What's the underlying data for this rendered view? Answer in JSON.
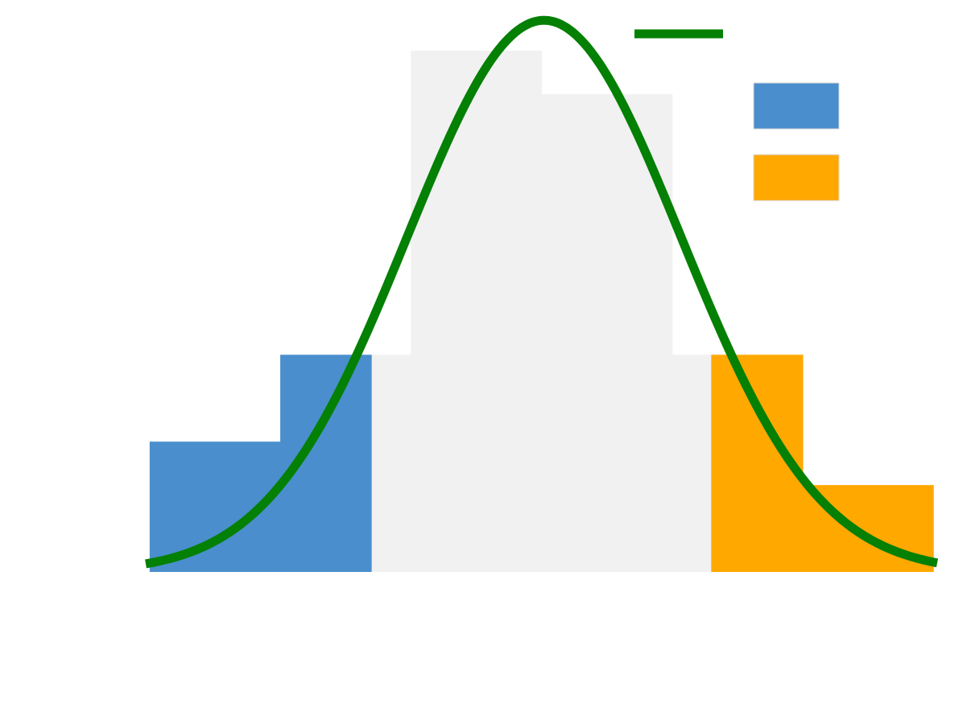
{
  "chart_data": {
    "type": "bar",
    "title": "",
    "xlabel": "",
    "ylabel": "",
    "grid": false,
    "bins": [
      {
        "x0": 0,
        "x1": 1,
        "value": 3,
        "group": "left"
      },
      {
        "x0": 1,
        "x1": 1.7,
        "value": 5,
        "group": "left"
      },
      {
        "x0": 1.7,
        "x1": 2,
        "value": 5,
        "group": "middle"
      },
      {
        "x0": 2,
        "x1": 3,
        "value": 12,
        "group": "middle"
      },
      {
        "x0": 3,
        "x1": 4,
        "value": 11,
        "group": "middle"
      },
      {
        "x0": 4,
        "x1": 4.3,
        "value": 5,
        "group": "middle"
      },
      {
        "x0": 4.3,
        "x1": 5,
        "value": 5,
        "group": "right"
      },
      {
        "x0": 5,
        "x1": 6,
        "value": 2,
        "group": "right"
      }
    ],
    "curve": {
      "type": "normal",
      "mean": 3.02,
      "sd": 1.05,
      "peak": 12.7,
      "x_range": [
        -0.03,
        6.03
      ]
    },
    "xlim": [
      -0.03,
      6.03
    ],
    "ylim": [
      0,
      13
    ],
    "legend": {
      "position": "top-right",
      "entries": [
        {
          "kind": "line",
          "series": "curve",
          "label": ""
        },
        {
          "kind": "patch",
          "series": "left",
          "label": ""
        },
        {
          "kind": "patch",
          "series": "right",
          "label": ""
        }
      ]
    },
    "colors": {
      "left": "#4a8ecd",
      "middle": "#f1f1f1",
      "right": "#ffa800",
      "curve": "#048004"
    }
  }
}
